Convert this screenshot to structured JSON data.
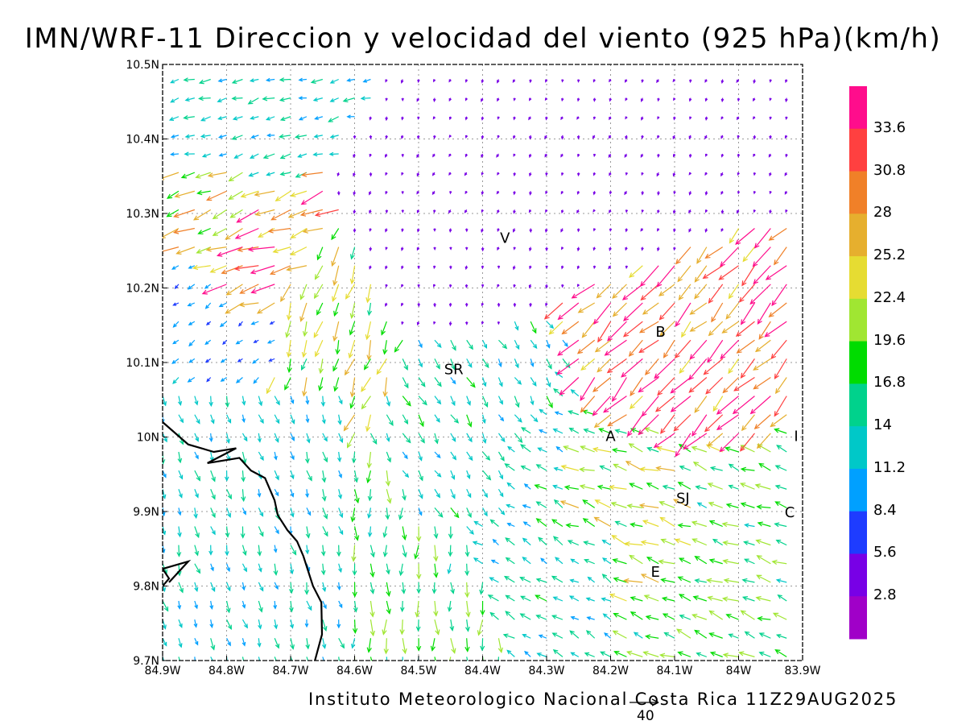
{
  "title": "IMN/WRF-11 Direccion y velocidad del viento (925 hPa)(km/h)",
  "credit": "Instituto Meteorologico Nacional Costa Rica 11Z29AUG2025",
  "reference_vector": {
    "value": 40,
    "label": "40"
  },
  "map": {
    "lon_range": [
      -84.9,
      -83.9
    ],
    "lat_range": [
      9.7,
      10.5
    ],
    "grid": "dotted",
    "lon_ticks": [
      {
        "value": -84.9,
        "label": "84.9W"
      },
      {
        "value": -84.8,
        "label": "84.8W"
      },
      {
        "value": -84.7,
        "label": "84.7W"
      },
      {
        "value": -84.6,
        "label": "84.6W"
      },
      {
        "value": -84.5,
        "label": "84.5W"
      },
      {
        "value": -84.4,
        "label": "84.4W"
      },
      {
        "value": -84.3,
        "label": "84.3W"
      },
      {
        "value": -84.2,
        "label": "84.2W"
      },
      {
        "value": -84.1,
        "label": "84.1W"
      },
      {
        "value": -84.0,
        "label": "84W"
      },
      {
        "value": -83.9,
        "label": "83.9W"
      }
    ],
    "lat_ticks": [
      {
        "value": 9.7,
        "label": "9.7N"
      },
      {
        "value": 9.8,
        "label": "9.8N"
      },
      {
        "value": 9.9,
        "label": "9.9N"
      },
      {
        "value": 10.0,
        "label": "10N"
      },
      {
        "value": 10.1,
        "label": "10.1N"
      },
      {
        "value": 10.2,
        "label": "10.2N"
      },
      {
        "value": 10.3,
        "label": "10.3N"
      },
      {
        "value": 10.4,
        "label": "10.4N"
      },
      {
        "value": 10.5,
        "label": "10.5N"
      }
    ],
    "places": [
      {
        "label": "V",
        "lon": -84.365,
        "lat": 10.268
      },
      {
        "label": "B",
        "lon": -84.122,
        "lat": 10.142
      },
      {
        "label": "SR",
        "lon": -84.445,
        "lat": 10.092
      },
      {
        "label": "A",
        "lon": -84.2,
        "lat": 10.002
      },
      {
        "label": "I",
        "lon": -83.91,
        "lat": 10.002
      },
      {
        "label": "SJ",
        "lon": -84.087,
        "lat": 9.919
      },
      {
        "label": "C",
        "lon": -83.92,
        "lat": 9.9
      },
      {
        "label": "E",
        "lon": -84.13,
        "lat": 9.82
      }
    ],
    "coastlines": [
      [
        [
          -84.9,
          10.02
        ],
        [
          -84.86,
          9.99
        ],
        [
          -84.82,
          9.98
        ],
        [
          -84.785,
          9.985
        ],
        [
          -84.83,
          9.965
        ],
        [
          -84.78,
          9.972
        ],
        [
          -84.762,
          9.955
        ],
        [
          -84.74,
          9.945
        ],
        [
          -84.725,
          9.915
        ],
        [
          -84.72,
          9.895
        ],
        [
          -84.705,
          9.875
        ],
        [
          -84.69,
          9.86
        ],
        [
          -84.68,
          9.84
        ],
        [
          -84.665,
          9.8
        ],
        [
          -84.652,
          9.778
        ],
        [
          -84.651,
          9.735
        ],
        [
          -84.662,
          9.7
        ]
      ],
      [
        [
          -84.9,
          9.8
        ],
        [
          -84.89,
          9.81
        ],
        [
          -84.9,
          9.823
        ],
        [
          -84.86,
          9.833
        ],
        [
          -84.89,
          9.805
        ]
      ]
    ]
  },
  "legend": {
    "title": "",
    "thresholds": [
      "33.6",
      "30.8",
      "28",
      "25.2",
      "22.4",
      "19.6",
      "16.8",
      "14",
      "11.2",
      "8.4",
      "5.6",
      "2.8"
    ],
    "colors": [
      "#ff0d8c",
      "#ff4040",
      "#f08028",
      "#e6af2e",
      "#e6dc32",
      "#a0e632",
      "#00dc00",
      "#00d28c",
      "#00c8c8",
      "#00a0ff",
      "#1e3cff",
      "#7800e6",
      "#a000c8"
    ]
  },
  "chart_data": {
    "type": "wind-vector-field",
    "units": "km/h",
    "level": "925 hPa",
    "grid_spacing_deg": 0.025,
    "regions": [
      {
        "area": "northeast",
        "lon": [
          -84.5,
          -83.9
        ],
        "lat": [
          10.3,
          10.5
        ],
        "direction_to_deg": 200,
        "speed": 4
      },
      {
        "area": "northwest",
        "lon": [
          -84.9,
          -84.7
        ],
        "lat": [
          10.38,
          10.5
        ],
        "direction_to_deg": 255,
        "speed": 13
      },
      {
        "area": "northwest-edge",
        "lon": [
          -84.9,
          -84.8
        ],
        "lat": [
          10.28,
          10.38
        ],
        "direction_to_deg": 250,
        "speed": 24
      },
      {
        "area": "west-central",
        "lon": [
          -84.9,
          -84.72
        ],
        "lat": [
          10.1,
          10.2
        ],
        "direction_to_deg": 235,
        "speed": 9
      },
      {
        "area": "jet",
        "lon": [
          -84.78,
          -84.72
        ],
        "lat": [
          10.17,
          10.26
        ],
        "direction_to_deg": 250,
        "speed": 30
      },
      {
        "area": "descent-west",
        "lon": [
          -84.72,
          -84.58
        ],
        "lat": [
          10.08,
          10.22
        ],
        "direction_to_deg": 200,
        "speed": 22
      },
      {
        "area": "southwest",
        "lon": [
          -84.9,
          -84.62
        ],
        "lat": [
          9.7,
          10.08
        ],
        "direction_to_deg": 165,
        "speed": 13
      },
      {
        "area": "south-central",
        "lon": [
          -84.62,
          -84.5
        ],
        "lat": [
          9.7,
          9.95
        ],
        "direction_to_deg": 180,
        "speed": 18
      },
      {
        "area": "central",
        "lon": [
          -84.5,
          -84.35
        ],
        "lat": [
          9.9,
          10.15
        ],
        "direction_to_deg": 150,
        "speed": 14
      },
      {
        "area": "valley-east",
        "lon": [
          -84.35,
          -84.2
        ],
        "lat": [
          9.85,
          10.0
        ],
        "direction_to_deg": 300,
        "speed": 14
      },
      {
        "area": "valley",
        "lon": [
          -84.25,
          -84.0
        ],
        "lat": [
          9.88,
          10.0
        ],
        "direction_to_deg": 290,
        "speed": 21
      },
      {
        "area": "southeast",
        "lon": [
          -84.05,
          -83.9
        ],
        "lat": [
          9.72,
          9.95
        ],
        "direction_to_deg": 290,
        "speed": 18
      },
      {
        "area": "northeast-slope",
        "lon": [
          -84.15,
          -84.05
        ],
        "lat": [
          10.02,
          10.12
        ],
        "direction_to_deg": 225,
        "speed": 31
      },
      {
        "area": "calm-central-north",
        "lon": [
          -84.55,
          -84.4
        ],
        "lat": [
          10.2,
          10.3
        ],
        "direction_to_deg": 190,
        "speed": 4
      }
    ]
  }
}
